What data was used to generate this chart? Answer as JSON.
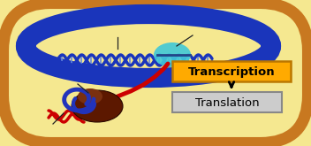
{
  "bg_outer_color": "#c87820",
  "bg_inner_color": "#f5e890",
  "dna_color": "#1a35bb",
  "dna_cross_color": "#6688dd",
  "rna_pol_color": "#40c8d8",
  "ribosome_dark": "#5c1800",
  "ribosome_blue": "#2233bb",
  "mrna_color": "#cc0000",
  "transcription_box_color": "#ffaa00",
  "transcription_text": "Transcription",
  "translation_box_color": "#cccccc",
  "translation_text": "Translation",
  "arrow_color": "#111111",
  "pointer_color": "#222222"
}
